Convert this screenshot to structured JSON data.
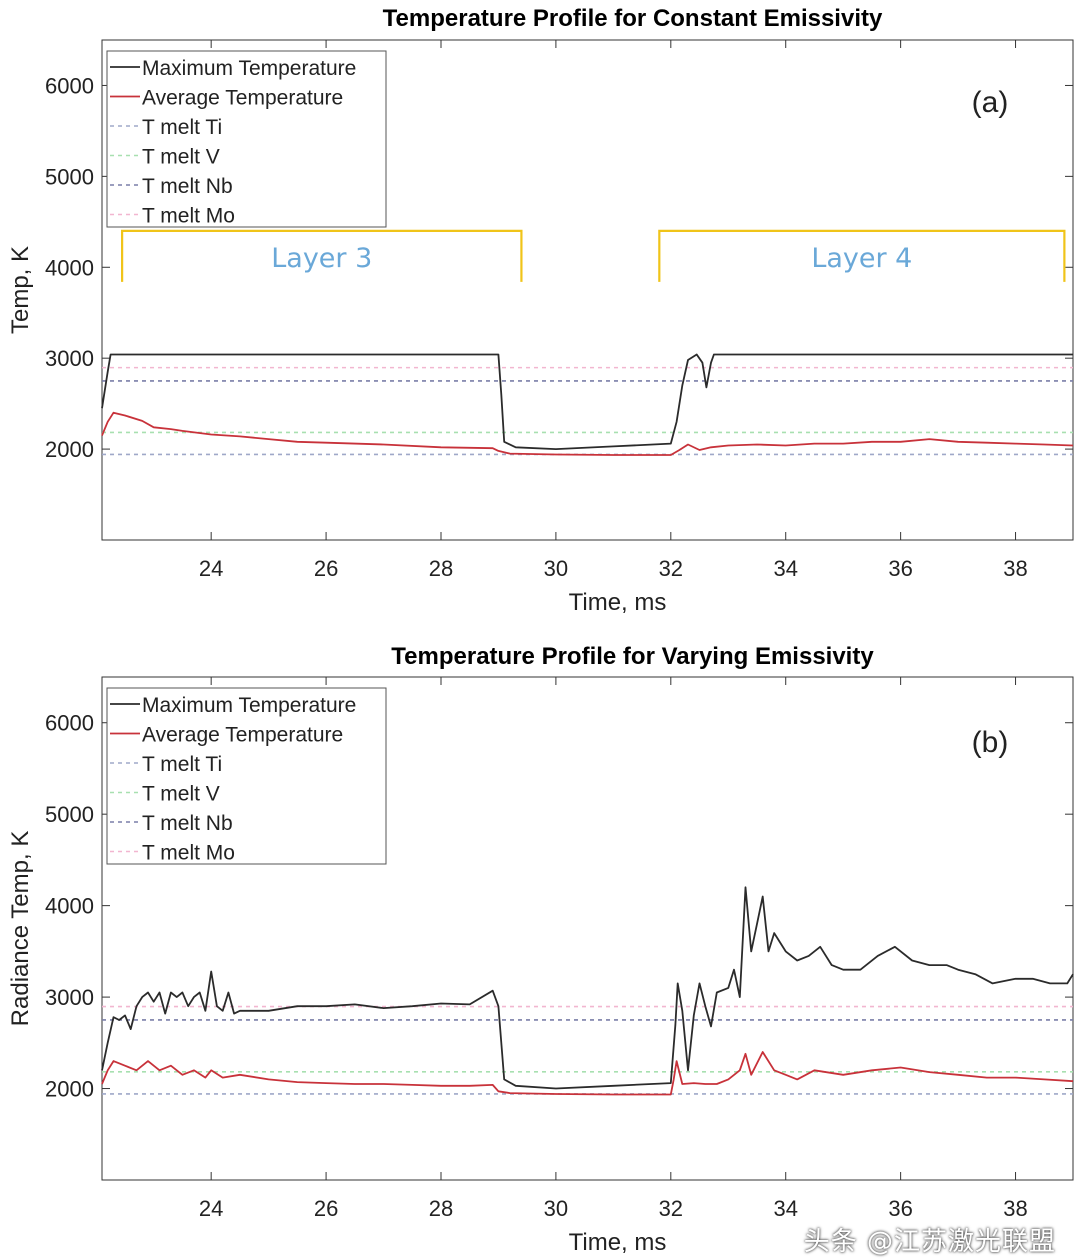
{
  "watermark": "头条 @江苏激光联盟",
  "colors": {
    "max": "#2b2b2b",
    "avg": "#c8323a",
    "ti": "#9fa8c8",
    "v": "#a8e0b0",
    "nb": "#7a7fa8",
    "mo": "#f2b6d0",
    "layer_bracket": "#f0c419",
    "layer_text": "#6aa8d8"
  },
  "chart_data": [
    {
      "type": "line",
      "panel_label": "(a)",
      "title": "Temperature Profile for Constant Emissivity",
      "xlabel": "Time, ms",
      "ylabel": "Temp, K",
      "xlim": [
        22.1,
        39
      ],
      "ylim": [
        1000,
        6500
      ],
      "xticks": [
        24,
        26,
        28,
        30,
        32,
        34,
        36,
        38
      ],
      "yticks": [
        2000,
        3000,
        4000,
        5000,
        6000
      ],
      "grid": false,
      "legend_position": "top-left",
      "series": [
        {
          "name": "Maximum Temperature",
          "color_key": "max",
          "points": [
            [
              22.1,
              2450
            ],
            [
              22.2,
              2850
            ],
            [
              22.25,
              3040
            ],
            [
              23,
              3040
            ],
            [
              25,
              3040
            ],
            [
              27,
              3040
            ],
            [
              28.9,
              3040
            ],
            [
              29,
              3040
            ],
            [
              29.05,
              2600
            ],
            [
              29.1,
              2080
            ],
            [
              29.3,
              2020
            ],
            [
              30,
              2000
            ],
            [
              31,
              2030
            ],
            [
              32,
              2060
            ],
            [
              32.1,
              2300
            ],
            [
              32.2,
              2700
            ],
            [
              32.3,
              2980
            ],
            [
              32.45,
              3040
            ],
            [
              32.55,
              2950
            ],
            [
              32.62,
              2680
            ],
            [
              32.7,
              2950
            ],
            [
              32.75,
              3040
            ],
            [
              34,
              3040
            ],
            [
              36,
              3040
            ],
            [
              39,
              3040
            ]
          ]
        },
        {
          "name": "Average Temperature",
          "color_key": "avg",
          "points": [
            [
              22.1,
              2150
            ],
            [
              22.2,
              2300
            ],
            [
              22.3,
              2400
            ],
            [
              22.5,
              2370
            ],
            [
              22.8,
              2310
            ],
            [
              23,
              2240
            ],
            [
              23.3,
              2220
            ],
            [
              23.5,
              2200
            ],
            [
              24,
              2160
            ],
            [
              24.5,
              2140
            ],
            [
              25,
              2110
            ],
            [
              25.5,
              2080
            ],
            [
              26,
              2070
            ],
            [
              27,
              2050
            ],
            [
              28,
              2020
            ],
            [
              28.9,
              2010
            ],
            [
              29,
              1980
            ],
            [
              29.2,
              1950
            ],
            [
              30,
              1940
            ],
            [
              31,
              1935
            ],
            [
              32,
              1935
            ],
            [
              32.15,
              1990
            ],
            [
              32.3,
              2050
            ],
            [
              32.5,
              1990
            ],
            [
              32.7,
              2020
            ],
            [
              33,
              2040
            ],
            [
              33.5,
              2050
            ],
            [
              34,
              2040
            ],
            [
              34.5,
              2060
            ],
            [
              35,
              2060
            ],
            [
              35.5,
              2080
            ],
            [
              36,
              2080
            ],
            [
              36.5,
              2110
            ],
            [
              37,
              2080
            ],
            [
              37.5,
              2070
            ],
            [
              38,
              2060
            ],
            [
              38.5,
              2050
            ],
            [
              39,
              2040
            ]
          ]
        },
        {
          "name": "T melt Ti",
          "color_key": "ti",
          "dashed": true,
          "y": 1941
        },
        {
          "name": "T melt V",
          "color_key": "v",
          "dashed": true,
          "y": 2183
        },
        {
          "name": "T melt Nb",
          "color_key": "nb",
          "dashed": true,
          "y": 2750
        },
        {
          "name": "T melt Mo",
          "color_key": "mo",
          "dashed": true,
          "y": 2896
        }
      ],
      "annotations": [
        {
          "text": "Layer 3",
          "x_start": 22.45,
          "x_end": 29.4,
          "y_top": 4400,
          "y_bottom": 3840
        },
        {
          "text": "Layer 4",
          "x_start": 31.8,
          "x_end": 38.85,
          "y_top": 4400,
          "y_bottom": 3840
        }
      ]
    },
    {
      "type": "line",
      "panel_label": "(b)",
      "title": "Temperature Profile for Varying Emissivity",
      "xlabel": "Time, ms",
      "ylabel": "Radiance Temp, K",
      "xlim": [
        22.1,
        39
      ],
      "ylim": [
        1000,
        6500
      ],
      "xticks": [
        24,
        26,
        28,
        30,
        32,
        34,
        36,
        38
      ],
      "yticks": [
        2000,
        3000,
        4000,
        5000,
        6000
      ],
      "grid": false,
      "legend_position": "top-left",
      "series": [
        {
          "name": "Maximum Temperature",
          "color_key": "max",
          "points": [
            [
              22.1,
              2200
            ],
            [
              22.2,
              2500
            ],
            [
              22.3,
              2780
            ],
            [
              22.4,
              2750
            ],
            [
              22.5,
              2800
            ],
            [
              22.6,
              2650
            ],
            [
              22.7,
              2900
            ],
            [
              22.8,
              3000
            ],
            [
              22.9,
              3050
            ],
            [
              23,
              2950
            ],
            [
              23.1,
              3050
            ],
            [
              23.2,
              2820
            ],
            [
              23.3,
              3050
            ],
            [
              23.4,
              3000
            ],
            [
              23.5,
              3050
            ],
            [
              23.6,
              2900
            ],
            [
              23.7,
              3000
            ],
            [
              23.8,
              3050
            ],
            [
              23.9,
              2850
            ],
            [
              24,
              3280
            ],
            [
              24.1,
              2900
            ],
            [
              24.2,
              2850
            ],
            [
              24.3,
              3050
            ],
            [
              24.4,
              2820
            ],
            [
              24.5,
              2850
            ],
            [
              25,
              2850
            ],
            [
              25.5,
              2900
            ],
            [
              26,
              2900
            ],
            [
              26.5,
              2920
            ],
            [
              27,
              2880
            ],
            [
              27.5,
              2900
            ],
            [
              28,
              2930
            ],
            [
              28.5,
              2920
            ],
            [
              28.9,
              3070
            ],
            [
              29,
              2900
            ],
            [
              29.05,
              2500
            ],
            [
              29.1,
              2100
            ],
            [
              29.3,
              2030
            ],
            [
              30,
              2000
            ],
            [
              31,
              2030
            ],
            [
              32,
              2060
            ],
            [
              32.08,
              2700
            ],
            [
              32.12,
              3150
            ],
            [
              32.2,
              2850
            ],
            [
              32.3,
              2200
            ],
            [
              32.4,
              2800
            ],
            [
              32.5,
              3150
            ],
            [
              32.6,
              2900
            ],
            [
              32.7,
              2680
            ],
            [
              32.8,
              3050
            ],
            [
              33,
              3100
            ],
            [
              33.1,
              3300
            ],
            [
              33.2,
              3000
            ],
            [
              33.3,
              4200
            ],
            [
              33.4,
              3500
            ],
            [
              33.5,
              3800
            ],
            [
              33.6,
              4100
            ],
            [
              33.7,
              3500
            ],
            [
              33.8,
              3700
            ],
            [
              34,
              3500
            ],
            [
              34.2,
              3400
            ],
            [
              34.4,
              3450
            ],
            [
              34.6,
              3550
            ],
            [
              34.8,
              3350
            ],
            [
              35,
              3300
            ],
            [
              35.3,
              3300
            ],
            [
              35.6,
              3450
            ],
            [
              35.9,
              3550
            ],
            [
              36.2,
              3400
            ],
            [
              36.5,
              3350
            ],
            [
              36.8,
              3350
            ],
            [
              37,
              3300
            ],
            [
              37.3,
              3250
            ],
            [
              37.6,
              3150
            ],
            [
              38,
              3200
            ],
            [
              38.3,
              3200
            ],
            [
              38.6,
              3150
            ],
            [
              38.9,
              3150
            ],
            [
              39,
              3250
            ]
          ]
        },
        {
          "name": "Average Temperature",
          "color_key": "avg",
          "points": [
            [
              22.1,
              2050
            ],
            [
              22.2,
              2200
            ],
            [
              22.3,
              2300
            ],
            [
              22.5,
              2250
            ],
            [
              22.7,
              2200
            ],
            [
              22.9,
              2300
            ],
            [
              23.1,
              2200
            ],
            [
              23.3,
              2250
            ],
            [
              23.5,
              2150
            ],
            [
              23.7,
              2200
            ],
            [
              23.9,
              2120
            ],
            [
              24,
              2200
            ],
            [
              24.2,
              2120
            ],
            [
              24.5,
              2150
            ],
            [
              25,
              2100
            ],
            [
              25.5,
              2070
            ],
            [
              26,
              2060
            ],
            [
              26.5,
              2050
            ],
            [
              27,
              2050
            ],
            [
              27.5,
              2040
            ],
            [
              28,
              2030
            ],
            [
              28.5,
              2030
            ],
            [
              28.9,
              2040
            ],
            [
              29,
              1970
            ],
            [
              29.2,
              1950
            ],
            [
              30,
              1940
            ],
            [
              31,
              1935
            ],
            [
              32,
              1935
            ],
            [
              32.05,
              2100
            ],
            [
              32.1,
              2300
            ],
            [
              32.2,
              2050
            ],
            [
              32.4,
              2060
            ],
            [
              32.6,
              2050
            ],
            [
              32.8,
              2050
            ],
            [
              33,
              2100
            ],
            [
              33.2,
              2200
            ],
            [
              33.3,
              2380
            ],
            [
              33.4,
              2150
            ],
            [
              33.6,
              2400
            ],
            [
              33.8,
              2200
            ],
            [
              34,
              2150
            ],
            [
              34.2,
              2100
            ],
            [
              34.5,
              2200
            ],
            [
              35,
              2150
            ],
            [
              35.5,
              2200
            ],
            [
              36,
              2230
            ],
            [
              36.5,
              2180
            ],
            [
              37,
              2150
            ],
            [
              37.5,
              2120
            ],
            [
              38,
              2120
            ],
            [
              38.5,
              2100
            ],
            [
              39,
              2080
            ]
          ]
        },
        {
          "name": "T melt Ti",
          "color_key": "ti",
          "dashed": true,
          "y": 1941
        },
        {
          "name": "T melt V",
          "color_key": "v",
          "dashed": true,
          "y": 2183
        },
        {
          "name": "T melt Nb",
          "color_key": "nb",
          "dashed": true,
          "y": 2750
        },
        {
          "name": "T melt Mo",
          "color_key": "mo",
          "dashed": true,
          "y": 2896
        }
      ],
      "annotations": []
    }
  ]
}
